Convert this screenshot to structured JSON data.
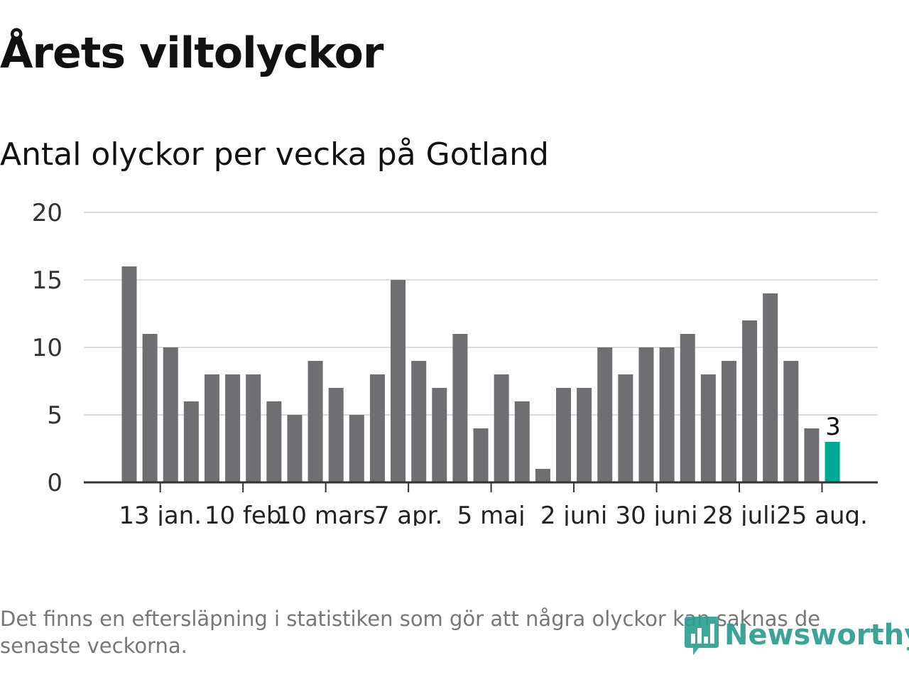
{
  "header": {
    "title": "Årets viltolyckor",
    "subtitle": "Antal olyckor per vecka på Gotland"
  },
  "footnote": "Det finns en eftersläpning i statistiken som gör att några olyckor kan saknas de senaste veckorna.",
  "brand": {
    "name": "Newsworthy",
    "color": "#2a9d8f"
  },
  "chart_data": {
    "type": "bar",
    "y_ticks": [
      0,
      5,
      10,
      15,
      20
    ],
    "ylim": [
      0,
      20
    ],
    "x_tick_labels": [
      "13 jan.",
      "10 feb",
      "10 mars",
      "7 apr.",
      "5 maj",
      "2 juni",
      "30 juni",
      "28 juli",
      "25 aug."
    ],
    "x_tick_bar_index": [
      1.5,
      5.5,
      9.5,
      13.5,
      17.5,
      21.5,
      25.5,
      29.5,
      33.5
    ],
    "values": [
      16,
      11,
      10,
      6,
      8,
      8,
      8,
      6,
      5,
      9,
      7,
      5,
      8,
      15,
      9,
      7,
      11,
      4,
      8,
      6,
      1,
      7,
      7,
      10,
      8,
      10,
      10,
      11,
      8,
      9,
      12,
      14,
      9,
      4,
      3
    ],
    "highlight_index": 34,
    "highlight_label": "3",
    "colors": {
      "bar": "#6e6e73",
      "highlight": "#00a896",
      "grid": "#dddddd",
      "axis": "#333333"
    }
  }
}
